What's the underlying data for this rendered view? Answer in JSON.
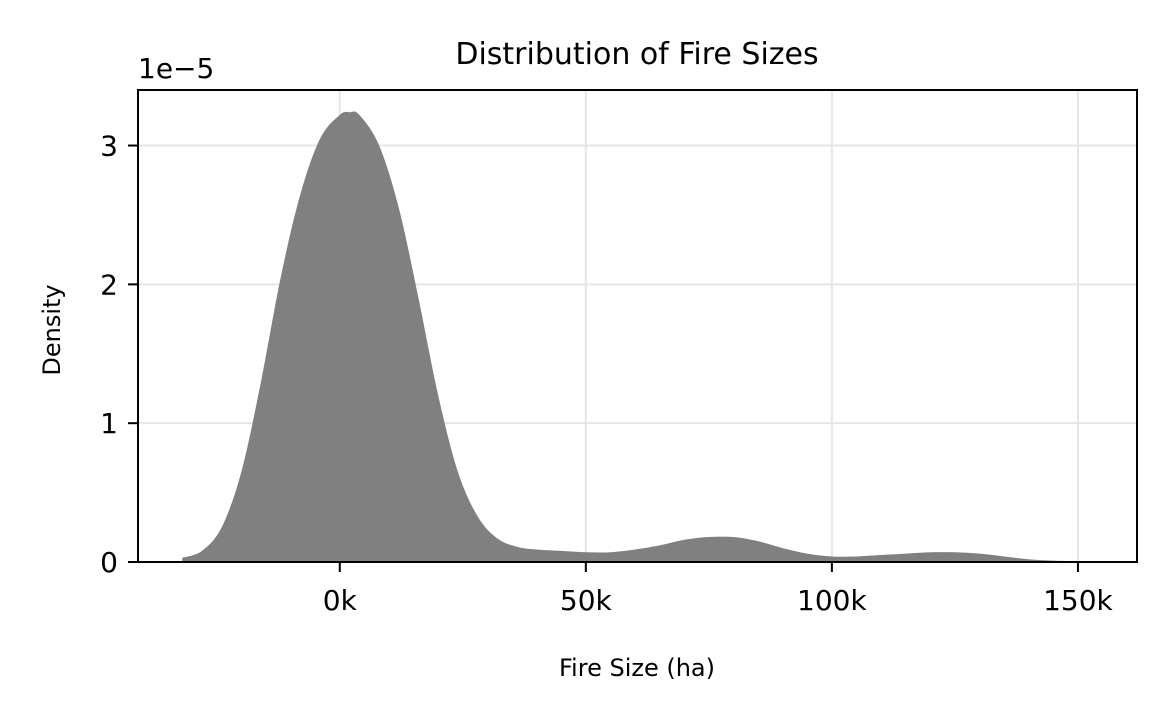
{
  "chart_data": {
    "type": "area",
    "title": "Distribution of Fire Sizes",
    "xlabel": "Fire Size (ha)",
    "ylabel": "Density",
    "y_offset_text": "1e−5",
    "y_scale_multiplier": 1e-05,
    "xlim": [
      -41000,
      162000
    ],
    "ylim": [
      0,
      3.4
    ],
    "x_ticks": [
      0,
      50000,
      100000,
      150000
    ],
    "x_tick_labels": [
      "0k",
      "50k",
      "100k",
      "150k"
    ],
    "y_ticks": [
      0,
      1,
      2,
      3
    ],
    "y_tick_labels": [
      "0",
      "1",
      "2",
      "3"
    ],
    "grid": true,
    "fill_color": "#808080",
    "series": [
      {
        "x": [
          -32000,
          -28000,
          -24000,
          -20000,
          -16000,
          -12000,
          -8000,
          -4000,
          0,
          2000,
          4000,
          8000,
          12000,
          16000,
          20000,
          24000,
          28000,
          32000,
          36000,
          40000,
          45000,
          50000,
          55000,
          60000,
          65000,
          70000,
          75000,
          80000,
          85000,
          90000,
          95000,
          100000,
          105000,
          110000,
          115000,
          120000,
          125000,
          130000,
          135000,
          140000,
          145000,
          150000,
          153000
        ],
        "y": [
          0.03,
          0.08,
          0.25,
          0.65,
          1.3,
          2.05,
          2.65,
          3.05,
          3.22,
          3.24,
          3.22,
          3.0,
          2.55,
          1.9,
          1.2,
          0.65,
          0.33,
          0.17,
          0.11,
          0.09,
          0.08,
          0.07,
          0.07,
          0.09,
          0.12,
          0.16,
          0.18,
          0.18,
          0.15,
          0.1,
          0.06,
          0.04,
          0.04,
          0.05,
          0.06,
          0.07,
          0.07,
          0.06,
          0.04,
          0.02,
          0.01,
          0.005,
          0.0
        ]
      }
    ]
  }
}
